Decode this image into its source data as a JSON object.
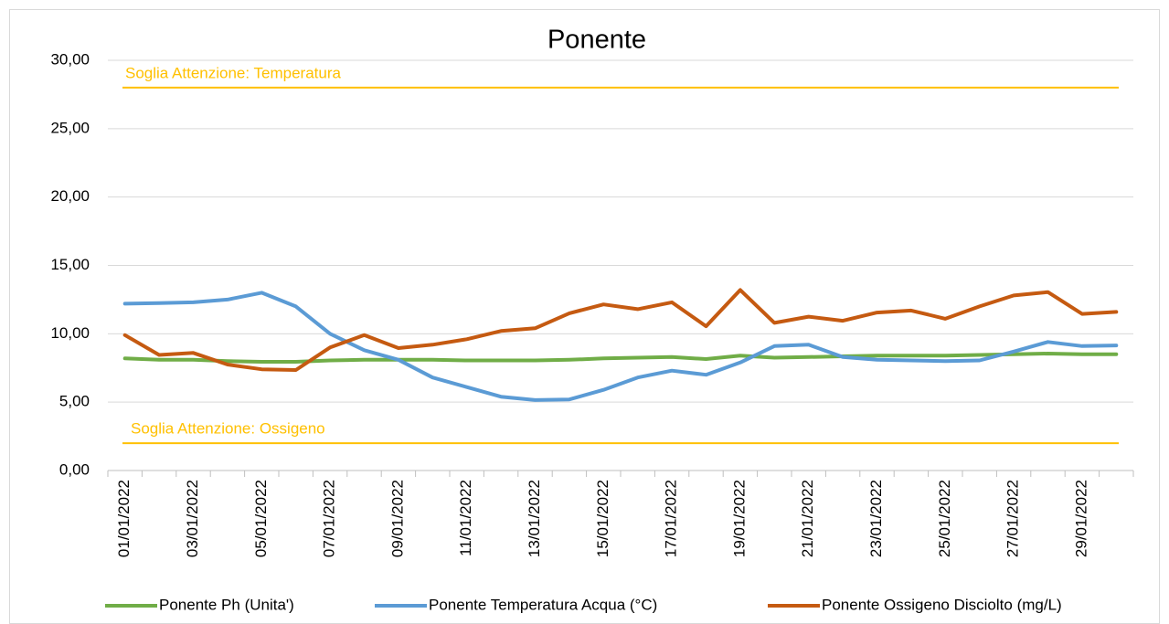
{
  "chart_data": {
    "type": "line",
    "title": "Ponente",
    "categories": [
      "01/01/2022",
      null,
      "03/01/2022",
      null,
      "05/01/2022",
      null,
      "07/01/2022",
      null,
      "09/01/2022",
      null,
      "11/01/2022",
      null,
      "13/01/2022",
      null,
      "15/01/2022",
      null,
      "17/01/2022",
      null,
      "19/01/2022",
      null,
      "21/01/2022",
      null,
      "23/01/2022",
      null,
      "25/01/2022",
      null,
      "27/01/2022",
      null,
      "29/01/2022",
      null
    ],
    "series": [
      {
        "name": "Ponente Ph (Unita')",
        "color": "#70ad47",
        "values": [
          8.2,
          8.1,
          8.1,
          8.0,
          7.95,
          7.95,
          8.05,
          8.1,
          8.1,
          8.1,
          8.05,
          8.05,
          8.05,
          8.1,
          8.2,
          8.25,
          8.3,
          8.15,
          8.4,
          8.25,
          8.3,
          8.35,
          8.4,
          8.4,
          8.4,
          8.45,
          8.5,
          8.55,
          8.5,
          8.5
        ]
      },
      {
        "name": "Ponente Temperatura Acqua (°C)",
        "color": "#5b9bd5",
        "values": [
          12.2,
          12.25,
          12.3,
          12.5,
          13.0,
          12.0,
          10.0,
          8.8,
          8.1,
          6.8,
          6.1,
          5.4,
          5.15,
          5.2,
          5.9,
          6.8,
          7.3,
          7.0,
          7.9,
          9.1,
          9.2,
          8.3,
          8.1,
          8.05,
          8.0,
          8.05,
          8.7,
          9.4,
          9.1,
          9.15
        ]
      },
      {
        "name": "Ponente Ossigeno Disciolto (mg/L)",
        "color": "#c55a11",
        "values": [
          9.9,
          8.45,
          8.6,
          7.75,
          7.4,
          7.35,
          9.0,
          9.9,
          8.95,
          9.2,
          9.6,
          10.2,
          10.4,
          11.5,
          12.15,
          11.8,
          12.3,
          10.55,
          13.2,
          10.8,
          11.25,
          10.95,
          11.55,
          11.7,
          11.1,
          12.0,
          12.8,
          13.05,
          11.45,
          11.6
        ]
      }
    ],
    "thresholds": [
      {
        "label": "Soglia Attenzione: Temperatura",
        "value": 28,
        "color": "#ffc000"
      },
      {
        "label": "Soglia Attenzione: Ossigeno",
        "value": 2,
        "color": "#ffc000"
      }
    ],
    "ylim": [
      0,
      30
    ],
    "yticks": [
      {
        "value": 0,
        "label": "0,00"
      },
      {
        "value": 5,
        "label": "5,00"
      },
      {
        "value": 10,
        "label": "10,00"
      },
      {
        "value": 15,
        "label": "15,00"
      },
      {
        "value": 20,
        "label": "20,00"
      },
      {
        "value": 25,
        "label": "25,00"
      },
      {
        "value": 30,
        "label": "30,00"
      }
    ],
    "grid": true,
    "legend": "bottom"
  }
}
